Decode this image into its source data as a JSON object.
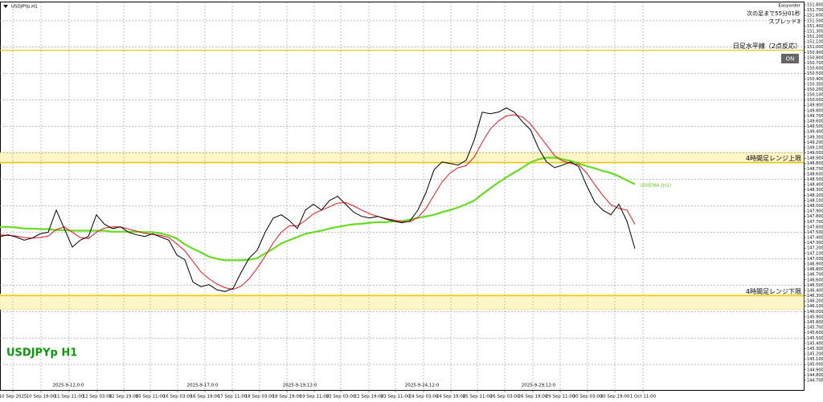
{
  "chart_data": {
    "type": "line",
    "symbol_caption": "USDJPYp,H1",
    "watermark": "USDJPYp H1",
    "panel": {
      "title": "Easyorder",
      "timer": "次の足まで55分01秒",
      "spread": "スプレッド3",
      "button": "ON"
    },
    "ylim": [
      144.7,
      151.8
    ],
    "xlim": [
      0,
      100
    ],
    "yticks": [
      {
        "value": 151.8,
        "label": "151.800"
      },
      {
        "value": 151.7,
        "label": "151.700"
      },
      {
        "value": 151.6,
        "label": "151.600"
      },
      {
        "value": 151.5,
        "label": "151.500"
      },
      {
        "value": 151.4,
        "label": "151.400"
      },
      {
        "value": 151.3,
        "label": "151.300"
      },
      {
        "value": 151.2,
        "label": "151.200"
      },
      {
        "value": 151.1,
        "label": "151.100"
      },
      {
        "value": 151.0,
        "label": "151.000"
      },
      {
        "value": 150.9,
        "label": "150.900"
      },
      {
        "value": 150.8,
        "label": "150.800"
      },
      {
        "value": 150.7,
        "label": "150.700"
      },
      {
        "value": 150.6,
        "label": "150.600"
      },
      {
        "value": 150.5,
        "label": "150.500"
      },
      {
        "value": 150.4,
        "label": "150.400"
      },
      {
        "value": 150.3,
        "label": "150.300"
      },
      {
        "value": 150.2,
        "label": "150.200"
      },
      {
        "value": 150.1,
        "label": "150.100"
      },
      {
        "value": 150.0,
        "label": "150.000"
      },
      {
        "value": 149.9,
        "label": "149.900"
      },
      {
        "value": 149.8,
        "label": "149.800"
      },
      {
        "value": 149.7,
        "label": "149.700"
      },
      {
        "value": 149.6,
        "label": "149.600"
      },
      {
        "value": 149.5,
        "label": "149.500"
      },
      {
        "value": 149.4,
        "label": "149.400"
      },
      {
        "value": 149.3,
        "label": "149.300"
      },
      {
        "value": 149.2,
        "label": "149.200"
      },
      {
        "value": 149.1,
        "label": "149.100"
      },
      {
        "value": 149.0,
        "label": "149.000"
      },
      {
        "value": 148.9,
        "label": "148.900"
      },
      {
        "value": 148.8,
        "label": "148.800"
      },
      {
        "value": 148.7,
        "label": "148.700"
      },
      {
        "value": 148.6,
        "label": "148.600"
      },
      {
        "value": 148.5,
        "label": "148.500"
      },
      {
        "value": 148.4,
        "label": "148.400"
      },
      {
        "value": 148.3,
        "label": "148.300"
      },
      {
        "value": 148.2,
        "label": "148.200"
      },
      {
        "value": 148.1,
        "label": "148.100"
      },
      {
        "value": 148.0,
        "label": "148.000"
      },
      {
        "value": 147.9,
        "label": "147.900"
      },
      {
        "value": 147.8,
        "label": "147.800"
      },
      {
        "value": 147.7,
        "label": "147.700"
      },
      {
        "value": 147.6,
        "label": "147.600"
      },
      {
        "value": 147.5,
        "label": "147.500"
      },
      {
        "value": 147.4,
        "label": "147.400"
      },
      {
        "value": 147.3,
        "label": "147.300"
      },
      {
        "value": 147.2,
        "label": "147.200"
      },
      {
        "value": 147.1,
        "label": "147.100"
      },
      {
        "value": 147.0,
        "label": "147.000"
      },
      {
        "value": 146.9,
        "label": "146.900"
      },
      {
        "value": 146.8,
        "label": "146.800"
      },
      {
        "value": 146.7,
        "label": "146.700"
      },
      {
        "value": 146.6,
        "label": "146.600"
      },
      {
        "value": 146.5,
        "label": "146.500"
      },
      {
        "value": 146.4,
        "label": "146.400"
      },
      {
        "value": 146.3,
        "label": "146.300"
      },
      {
        "value": 146.2,
        "label": "146.200"
      },
      {
        "value": 146.1,
        "label": "146.100"
      },
      {
        "value": 146.0,
        "label": "146.000"
      },
      {
        "value": 145.9,
        "label": "145.900"
      },
      {
        "value": 145.8,
        "label": "145.800"
      },
      {
        "value": 145.7,
        "label": "145.700"
      },
      {
        "value": 145.6,
        "label": "145.600"
      },
      {
        "value": 145.5,
        "label": "145.500"
      },
      {
        "value": 145.4,
        "label": "145.400"
      },
      {
        "value": 145.3,
        "label": "145.300"
      },
      {
        "value": 145.2,
        "label": "145.200"
      },
      {
        "value": 145.1,
        "label": "145.100"
      },
      {
        "value": 145.0,
        "label": "145.000"
      },
      {
        "value": 144.9,
        "label": "144.900"
      },
      {
        "value": 144.8,
        "label": "144.800"
      },
      {
        "value": 144.7,
        "label": "144.700"
      }
    ],
    "grid_y": [
      151.5,
      151.0,
      150.5,
      150.0,
      149.5,
      149.0,
      148.5,
      148.0,
      147.5,
      147.0,
      146.5,
      146.0,
      145.5,
      145.0
    ],
    "xticks": [
      {
        "value": 1.6,
        "label": "10 Sep 2025"
      },
      {
        "value": 5.1,
        "label": "10 Sep 19:00"
      },
      {
        "value": 8.6,
        "label": "11 Sep 11:00"
      },
      {
        "value": 12.1,
        "label": "12 Sep 03:00"
      },
      {
        "value": 15.4,
        "label": "12 Sep 19:00"
      },
      {
        "value": 18.7,
        "label": "15 Sep 11:00"
      },
      {
        "value": 22.1,
        "label": "16 Sep 03:00"
      },
      {
        "value": 25.5,
        "label": "16 Sep 19:00"
      },
      {
        "value": 28.9,
        "label": "17 Sep 11:00"
      },
      {
        "value": 32.3,
        "label": "18 Sep 03:00"
      },
      {
        "value": 35.7,
        "label": "18 Sep 19:00"
      },
      {
        "value": 39.1,
        "label": "19 Sep 11:00"
      },
      {
        "value": 42.4,
        "label": "22 Sep 03:00"
      },
      {
        "value": 45.9,
        "label": "22 Sep 19:00"
      },
      {
        "value": 49.2,
        "label": "23 Sep 11:00"
      },
      {
        "value": 52.7,
        "label": "24 Sep 03:00"
      },
      {
        "value": 56.1,
        "label": "24 Sep 19:00"
      },
      {
        "value": 59.4,
        "label": "25 Sep 11:00"
      },
      {
        "value": 62.8,
        "label": "26 Sep 03:00"
      },
      {
        "value": 66.3,
        "label": "26 Sep 19:00"
      },
      {
        "value": 69.7,
        "label": "29 Sep 11:00"
      },
      {
        "value": 73.1,
        "label": "30 Sep 03:00"
      },
      {
        "value": 76.5,
        "label": "30 Sep 19:00"
      },
      {
        "value": 80.0,
        "label": "1 Oct 11:00"
      }
    ],
    "separators": [
      {
        "value": 8.5,
        "label": "2025-9-12,0:0"
      },
      {
        "value": 25.2,
        "label": "2025-9-17,0:0"
      },
      {
        "value": 37.3,
        "label": "2025-9-19,12:0"
      },
      {
        "value": 52.5,
        "label": "2025-9-24,12:0"
      },
      {
        "value": 67.0,
        "label": "2025-9-29,12:0"
      }
    ],
    "zones": [
      {
        "from": 148.8,
        "to": 149.01
      },
      {
        "from": 146.04,
        "to": 146.33
      }
    ],
    "levels": [
      {
        "value": 150.94,
        "label": "日足水平線（2点反応）"
      },
      {
        "value": 148.82,
        "label": "4時間足レンジ上限"
      },
      {
        "value": 146.3,
        "label": "4時間足レンジ下限"
      }
    ],
    "series": [
      {
        "color": "#000000",
        "values": [
          147.42,
          147.45,
          147.41,
          147.35,
          147.39,
          147.47,
          147.5,
          147.92,
          147.57,
          147.22,
          147.35,
          147.42,
          147.83,
          147.65,
          147.57,
          147.6,
          147.5,
          147.45,
          147.42,
          147.47,
          147.41,
          147.35,
          147.07,
          146.98,
          146.56,
          146.47,
          146.51,
          146.41,
          146.38,
          146.44,
          146.74,
          147.01,
          147.16,
          147.5,
          147.77,
          147.83,
          147.72,
          147.57,
          147.92,
          148.03,
          147.92,
          148.1,
          148.18,
          148.03,
          147.88,
          147.8,
          147.77,
          147.8,
          147.75,
          147.71,
          147.68,
          147.71,
          147.92,
          148.25,
          148.68,
          148.83,
          148.8,
          148.77,
          148.86,
          149.24,
          149.77,
          149.74,
          149.77,
          149.85,
          149.77,
          149.59,
          149.44,
          149.09,
          148.83,
          148.72,
          148.77,
          148.83,
          148.74,
          148.38,
          148.07,
          147.92,
          147.83,
          148.03,
          147.71,
          147.19
        ]
      },
      {
        "color": "#e8141b",
        "values": [
          147.45,
          147.44,
          147.43,
          147.4,
          147.39,
          147.4,
          147.43,
          147.55,
          147.6,
          147.5,
          147.4,
          147.38,
          147.5,
          147.58,
          147.6,
          147.6,
          147.56,
          147.52,
          147.48,
          147.46,
          147.44,
          147.4,
          147.28,
          147.15,
          146.95,
          146.75,
          146.62,
          146.52,
          146.45,
          146.42,
          146.48,
          146.62,
          146.82,
          147.05,
          147.3,
          147.5,
          147.62,
          147.62,
          147.72,
          147.85,
          147.92,
          147.98,
          148.05,
          148.06,
          148.0,
          147.92,
          147.85,
          147.8,
          147.76,
          147.73,
          147.7,
          147.7,
          147.78,
          147.95,
          148.2,
          148.45,
          148.62,
          148.72,
          148.76,
          148.92,
          149.2,
          149.45,
          149.6,
          149.7,
          149.72,
          149.68,
          149.55,
          149.35,
          149.15,
          148.95,
          148.85,
          148.8,
          148.78,
          148.62,
          148.4,
          148.2,
          148.02,
          147.95,
          147.92,
          147.65
        ]
      },
      {
        "name": "100EMA (H1)",
        "color": "#66dd22",
        "values": [
          147.6,
          147.6,
          147.59,
          147.57,
          147.57,
          147.56,
          147.56,
          147.54,
          147.54,
          147.53,
          147.53,
          147.53,
          147.53,
          147.53,
          147.51,
          147.51,
          147.51,
          147.51,
          147.5,
          147.5,
          147.48,
          147.44,
          147.38,
          147.27,
          147.19,
          147.12,
          147.04,
          147.0,
          146.97,
          146.97,
          146.97,
          146.98,
          147.01,
          147.1,
          147.19,
          147.29,
          147.35,
          147.41,
          147.47,
          147.5,
          147.53,
          147.57,
          147.6,
          147.63,
          147.65,
          147.66,
          147.68,
          147.69,
          147.69,
          147.71,
          147.71,
          147.74,
          147.77,
          147.8,
          147.83,
          147.88,
          147.92,
          147.97,
          148.03,
          148.1,
          148.22,
          148.33,
          148.44,
          148.54,
          148.63,
          148.72,
          148.82,
          148.88,
          148.91,
          148.91,
          148.88,
          148.85,
          148.8,
          148.75,
          148.71,
          148.66,
          148.62,
          148.56,
          148.48,
          148.41
        ]
      }
    ]
  }
}
